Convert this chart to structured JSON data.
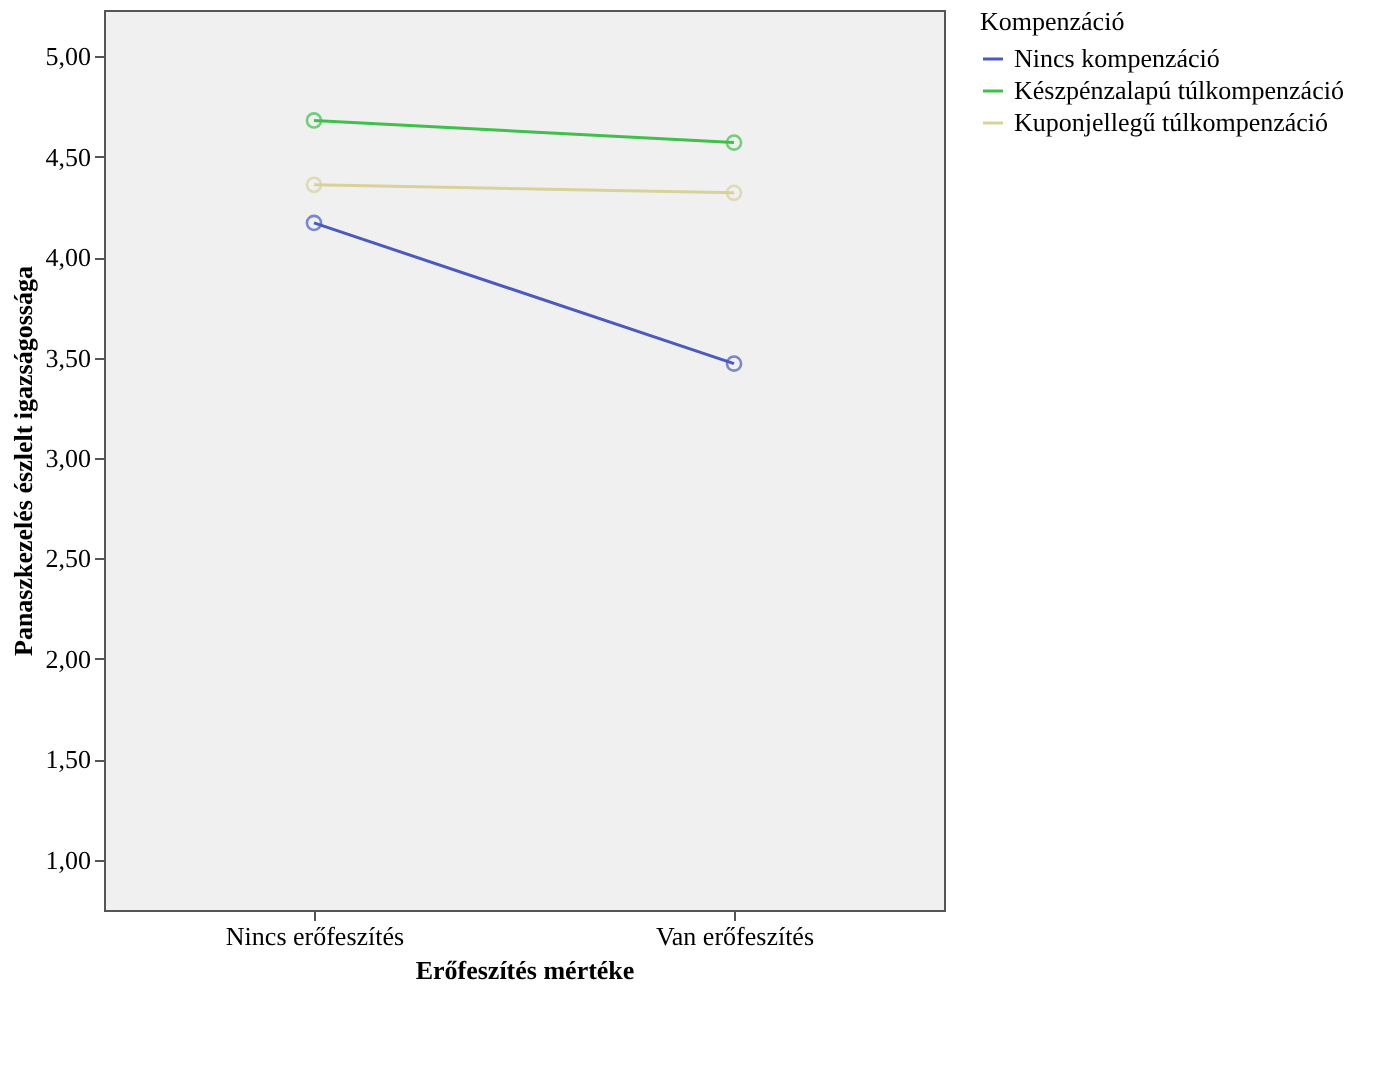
{
  "chart_data": {
    "type": "line",
    "xlabel": "Erőfeszítés mértéke",
    "ylabel": "Panaszkezelés észlelt igazságossága",
    "legend_title": "Kompenzáció",
    "categories": [
      "Nincs erőfeszítés",
      "Van erőfeszítés"
    ],
    "series": [
      {
        "name": "Nincs kompenzáció",
        "color": "#4a5bbd",
        "values": [
          4.17,
          3.47
        ]
      },
      {
        "name": "Készpénzalapú túlkompenzáció",
        "color": "#3ec04a",
        "values": [
          4.68,
          4.57
        ]
      },
      {
        "name": "Kuponjellegű túlkompenzáció",
        "color": "#d8d29a",
        "values": [
          4.36,
          4.32
        ]
      }
    ],
    "ylim": [
      0.75,
      5.23
    ],
    "yticks": [
      {
        "value": 1,
        "label": "1,00"
      },
      {
        "value": 1.5,
        "label": "1,50"
      },
      {
        "value": 2,
        "label": "2,00"
      },
      {
        "value": 2.5,
        "label": "2,50"
      },
      {
        "value": 3,
        "label": "3,00"
      },
      {
        "value": 3.5,
        "label": "3,50"
      },
      {
        "value": 4,
        "label": "4,00"
      },
      {
        "value": 4.5,
        "label": "4,50"
      },
      {
        "value": 5,
        "label": "5,00"
      }
    ],
    "marker": "circle",
    "line_style": "solid",
    "grid": false,
    "legend": "top right"
  }
}
